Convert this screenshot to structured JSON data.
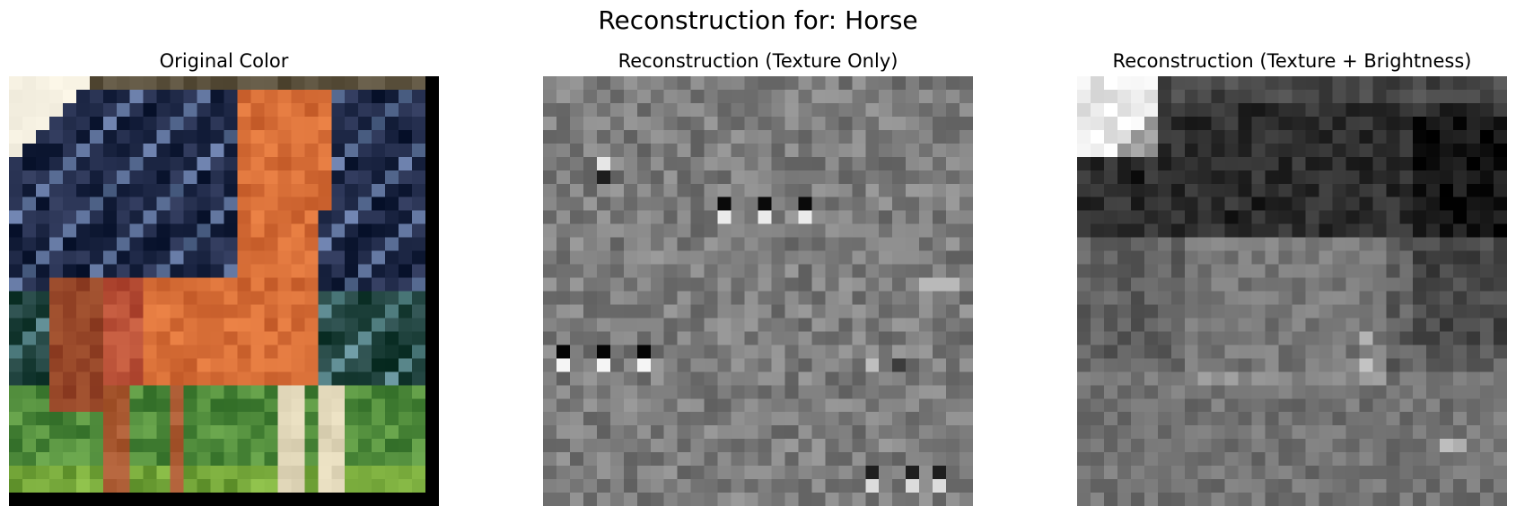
{
  "figure": {
    "title": "Reconstruction for: Horse"
  },
  "panels": [
    {
      "title": "Original Color"
    },
    {
      "title": "Reconstruction (Texture Only)"
    },
    {
      "title": "Reconstruction (Texture + Brightness)"
    }
  ]
}
